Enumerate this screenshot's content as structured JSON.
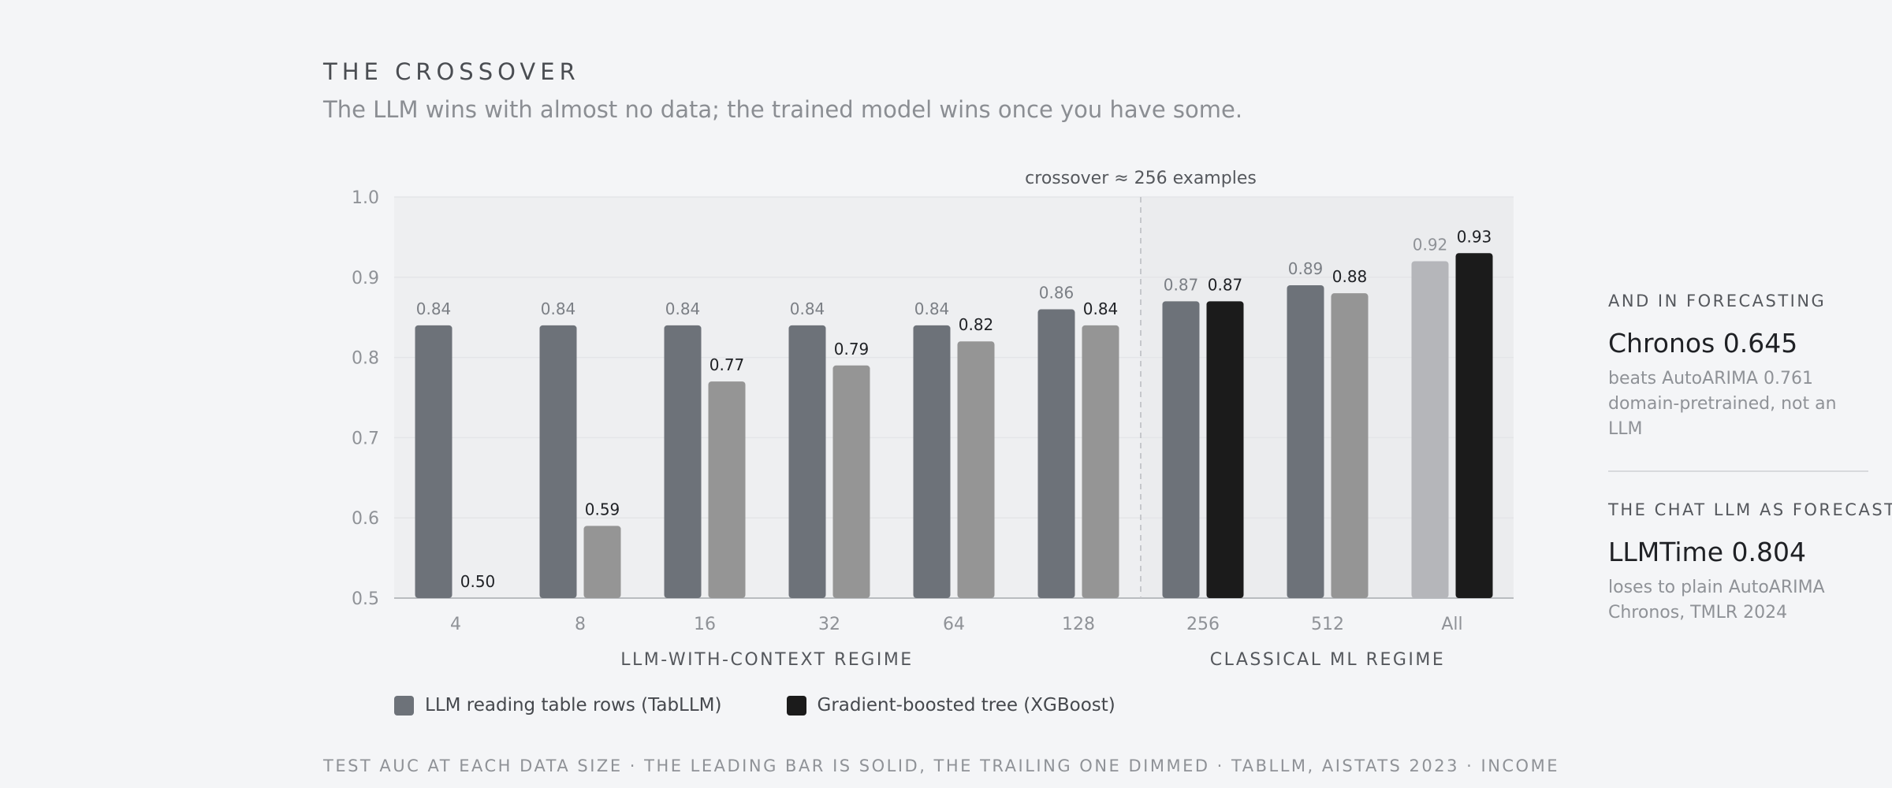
{
  "header": {
    "title": "THE CROSSOVER",
    "subtitle": "The LLM wins with almost no data; the trained model wins once you have some."
  },
  "chart_data": {
    "type": "bar",
    "categories": [
      "4",
      "8",
      "16",
      "32",
      "64",
      "128",
      "256",
      "512",
      "All"
    ],
    "series": [
      {
        "name": "LLM reading table rows (TabLLM)",
        "values": [
          0.84,
          0.84,
          0.84,
          0.84,
          0.84,
          0.86,
          0.87,
          0.89,
          0.92
        ]
      },
      {
        "name": "Gradient-boosted tree (XGBoost)",
        "values": [
          0.5,
          0.59,
          0.77,
          0.79,
          0.82,
          0.84,
          0.87,
          0.88,
          0.93
        ]
      }
    ],
    "data_labels": {
      "llm": [
        "0.84",
        "0.84",
        "0.84",
        "0.84",
        "0.84",
        "0.86",
        "0.87",
        "0.89",
        "0.92"
      ],
      "xgb": [
        "0.50",
        "0.59",
        "0.77",
        "0.79",
        "0.82",
        "0.84",
        "0.87",
        "0.88",
        "0.93"
      ]
    },
    "ylim": [
      0.5,
      1.0
    ],
    "yticks": [
      "1.0",
      "0.9",
      "0.8",
      "0.7",
      "0.6",
      "0.5"
    ],
    "ytick_values": [
      1.0,
      0.9,
      0.8,
      0.7,
      0.6,
      0.5
    ],
    "grid": true,
    "annotation": "crossover ≈ 256 examples",
    "crossover_category": "256",
    "regions": [
      "LLM-WITH-CONTEXT REGIME",
      "CLASSICAL ML REGIME"
    ],
    "legend_position": "bottom-left",
    "colors": {
      "llm_solid": "#6d7279",
      "llm_dimmed": "#b5b6ba",
      "xgb_solid": "#1b1b1b",
      "xgb_dimmed": "#959595",
      "region_llm_bg": "#eeeff1",
      "region_ml_bg": "#ebecee"
    }
  },
  "legend": {
    "llm": "LLM reading table rows (TabLLM)",
    "xgb": "Gradient-boosted tree (XGBoost)"
  },
  "sidebar": {
    "forecasting": {
      "heading": "AND IN FORECASTING",
      "value": "Chronos 0.645",
      "note1": "beats AutoARIMA 0.761",
      "note2": "domain-pretrained, not an LLM"
    },
    "chat_llm": {
      "heading": "THE CHAT LLM AS FORECASTER",
      "value": "LLMTime 0.804",
      "note1": "loses to plain AutoARIMA",
      "note2": "Chronos, TMLR 2024"
    }
  },
  "footer": "TEST AUC AT EACH DATA SIZE · THE LEADING BAR IS SOLID, THE TRAILING ONE DIMMED · TABLLM, AISTATS 2023 · INCOME"
}
